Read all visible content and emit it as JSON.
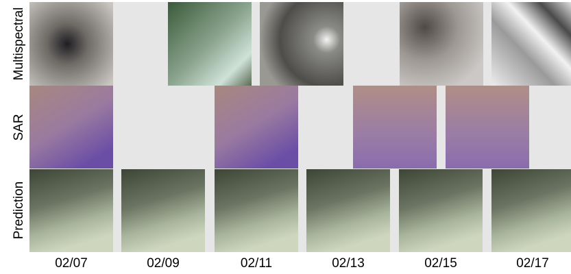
{
  "rows": [
    "Multispectral",
    "SAR",
    "Prediction"
  ],
  "columns": [
    "02/07",
    "02/09",
    "02/11",
    "02/13",
    "02/15",
    "02/17"
  ]
}
